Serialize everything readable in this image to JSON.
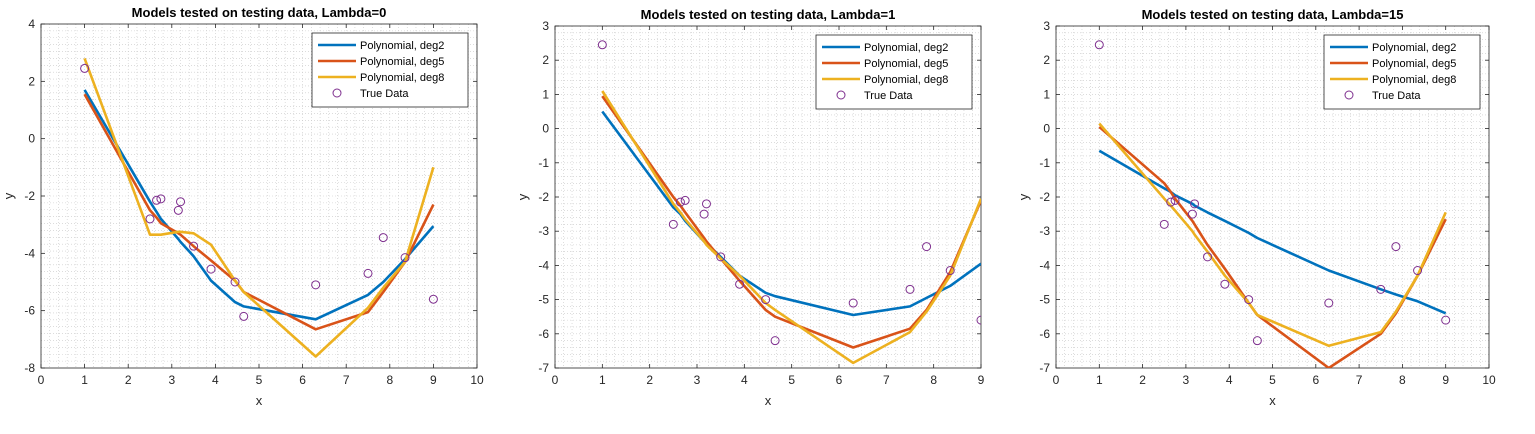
{
  "chart_data": [
    {
      "type": "line",
      "title": "Models tested on testing data, Lambda=0",
      "xlabel": "x",
      "ylabel": "y",
      "xlim": [
        0,
        10
      ],
      "ylim": [
        -8,
        4
      ],
      "xticks": [
        0,
        1,
        2,
        3,
        4,
        5,
        6,
        7,
        8,
        9,
        10
      ],
      "yticks": [
        -8,
        -6,
        -4,
        -2,
        0,
        2,
        4
      ],
      "grid": "minor-dotted",
      "legend_position": "top-right",
      "series": [
        {
          "name": "Polynomial, deg2",
          "style": "line",
          "color": "#0072BD",
          "x": [
            1,
            2.5,
            2.65,
            2.75,
            3.15,
            3.2,
            3.5,
            3.9,
            4.45,
            4.65,
            6.3,
            7.5,
            7.85,
            8.35,
            9
          ],
          "y": [
            1.7,
            -2.2,
            -2.55,
            -2.8,
            -3.5,
            -3.6,
            -4.1,
            -4.95,
            -5.7,
            -5.85,
            -6.3,
            -5.45,
            -5.0,
            -4.2,
            -3.05
          ]
        },
        {
          "name": "Polynomial, deg5",
          "style": "line",
          "color": "#D95319",
          "x": [
            1,
            2.5,
            2.65,
            2.75,
            3.15,
            3.2,
            3.5,
            3.9,
            4.45,
            4.65,
            6.3,
            7.5,
            7.85,
            8.35,
            9
          ],
          "y": [
            1.55,
            -2.5,
            -2.75,
            -2.95,
            -3.3,
            -3.35,
            -3.75,
            -4.25,
            -4.95,
            -5.35,
            -6.65,
            -6.05,
            -5.35,
            -4.3,
            -2.3
          ]
        },
        {
          "name": "Polynomial, deg8",
          "style": "line",
          "color": "#EDB120",
          "x": [
            1,
            2.5,
            2.65,
            2.75,
            3.15,
            3.2,
            3.5,
            3.9,
            4.45,
            4.65,
            6.3,
            7.5,
            7.85,
            8.35,
            9
          ],
          "y": [
            2.8,
            -3.35,
            -3.35,
            -3.35,
            -3.25,
            -3.25,
            -3.3,
            -3.7,
            -4.95,
            -5.35,
            -7.6,
            -5.9,
            -5.2,
            -4.3,
            -1.0
          ]
        },
        {
          "name": "True Data",
          "style": "marker",
          "color": "#7E2F8E",
          "x": [
            1,
            2.5,
            2.65,
            2.75,
            3.15,
            3.2,
            3.5,
            3.9,
            4.45,
            4.65,
            6.3,
            7.5,
            7.85,
            8.35,
            9
          ],
          "y": [
            2.45,
            -2.8,
            -2.15,
            -2.1,
            -2.5,
            -2.2,
            -3.75,
            -4.55,
            -5.0,
            -6.2,
            -5.1,
            -4.7,
            -3.45,
            -4.15,
            -5.6
          ]
        }
      ]
    },
    {
      "type": "line",
      "title": "Models tested on testing data, Lambda=1",
      "xlabel": "x",
      "ylabel": "y",
      "xlim": [
        0,
        9
      ],
      "ylim": [
        -7,
        3
      ],
      "xticks": [
        0,
        1,
        2,
        3,
        4,
        5,
        6,
        7,
        8,
        9
      ],
      "yticks": [
        -7,
        -6,
        -5,
        -4,
        -3,
        -2,
        -1,
        0,
        1,
        2,
        3
      ],
      "grid": "minor-dotted",
      "legend_position": "top-right",
      "series": [
        {
          "name": "Polynomial, deg2",
          "style": "line",
          "color": "#0072BD",
          "x": [
            1,
            2.5,
            2.65,
            2.75,
            3.15,
            3.2,
            3.5,
            3.9,
            4.45,
            4.65,
            6.3,
            7.5,
            7.85,
            8.35,
            9
          ],
          "y": [
            0.5,
            -2.3,
            -2.5,
            -2.7,
            -3.3,
            -3.35,
            -3.75,
            -4.3,
            -4.8,
            -4.9,
            -5.45,
            -5.2,
            -4.95,
            -4.6,
            -3.95
          ]
        },
        {
          "name": "Polynomial, deg5",
          "style": "line",
          "color": "#D95319",
          "x": [
            1,
            2.5,
            2.65,
            2.75,
            3.15,
            3.2,
            3.5,
            3.9,
            4.45,
            4.65,
            6.3,
            7.5,
            7.85,
            8.35,
            9
          ],
          "y": [
            0.95,
            -2.0,
            -2.25,
            -2.45,
            -3.2,
            -3.3,
            -3.8,
            -4.45,
            -5.3,
            -5.5,
            -6.4,
            -5.85,
            -5.3,
            -4.2,
            -2.1
          ]
        },
        {
          "name": "Polynomial, deg8",
          "style": "line",
          "color": "#EDB120",
          "x": [
            1,
            2.5,
            2.65,
            2.75,
            3.15,
            3.2,
            3.5,
            3.9,
            4.45,
            4.65,
            6.3,
            7.5,
            7.85,
            8.35,
            9
          ],
          "y": [
            1.1,
            -2.2,
            -2.45,
            -2.65,
            -3.3,
            -3.4,
            -3.8,
            -4.3,
            -5.1,
            -5.3,
            -6.85,
            -5.95,
            -5.35,
            -4.3,
            -2.05
          ]
        },
        {
          "name": "True Data",
          "style": "marker",
          "color": "#7E2F8E",
          "x": [
            1,
            2.5,
            2.65,
            2.75,
            3.15,
            3.2,
            3.5,
            3.9,
            4.45,
            4.65,
            6.3,
            7.5,
            7.85,
            8.35,
            9
          ],
          "y": [
            2.45,
            -2.8,
            -2.15,
            -2.1,
            -2.5,
            -2.2,
            -3.75,
            -4.55,
            -5.0,
            -6.2,
            -5.1,
            -4.7,
            -3.45,
            -4.15,
            -5.6
          ]
        }
      ]
    },
    {
      "type": "line",
      "title": "Models tested on testing data, Lambda=15",
      "xlabel": "x",
      "ylabel": "y",
      "xlim": [
        0,
        10
      ],
      "ylim": [
        -7,
        3
      ],
      "xticks": [
        0,
        1,
        2,
        3,
        4,
        5,
        6,
        7,
        8,
        9,
        10
      ],
      "yticks": [
        -7,
        -6,
        -5,
        -4,
        -3,
        -2,
        -1,
        0,
        1,
        2,
        3
      ],
      "grid": "minor-dotted",
      "legend_position": "top-right",
      "series": [
        {
          "name": "Polynomial, deg2",
          "style": "line",
          "color": "#0072BD",
          "x": [
            1,
            2.5,
            2.65,
            2.75,
            3.15,
            3.2,
            3.5,
            3.9,
            4.45,
            4.65,
            6.3,
            7.5,
            7.85,
            8.35,
            9
          ],
          "y": [
            -0.65,
            -1.75,
            -1.85,
            -1.95,
            -2.2,
            -2.25,
            -2.45,
            -2.7,
            -3.05,
            -3.2,
            -4.15,
            -4.7,
            -4.85,
            -5.05,
            -5.4
          ]
        },
        {
          "name": "Polynomial, deg5",
          "style": "line",
          "color": "#D95319",
          "x": [
            1,
            2.5,
            2.65,
            2.75,
            3.15,
            3.2,
            3.5,
            3.9,
            4.45,
            4.65,
            6.3,
            7.5,
            7.85,
            8.35,
            9
          ],
          "y": [
            0.05,
            -1.6,
            -1.85,
            -2.05,
            -2.7,
            -2.8,
            -3.4,
            -4.1,
            -5.1,
            -5.45,
            -7.0,
            -6.0,
            -5.4,
            -4.3,
            -2.65
          ]
        },
        {
          "name": "Polynomial, deg8",
          "style": "line",
          "color": "#EDB120",
          "x": [
            1,
            2.5,
            2.65,
            2.75,
            3.15,
            3.2,
            3.5,
            3.9,
            4.45,
            4.65,
            6.3,
            7.5,
            7.85,
            8.35,
            9
          ],
          "y": [
            0.15,
            -2.05,
            -2.25,
            -2.4,
            -3.0,
            -3.1,
            -3.6,
            -4.3,
            -5.1,
            -5.45,
            -6.35,
            -5.95,
            -5.35,
            -4.3,
            -2.45
          ]
        },
        {
          "name": "True Data",
          "style": "marker",
          "color": "#7E2F8E",
          "x": [
            1,
            2.5,
            2.65,
            2.75,
            3.15,
            3.2,
            3.5,
            3.9,
            4.45,
            4.65,
            6.3,
            7.5,
            7.85,
            8.35,
            9
          ],
          "y": [
            2.45,
            -2.8,
            -2.15,
            -2.1,
            -2.5,
            -2.2,
            -3.75,
            -4.55,
            -5.0,
            -6.2,
            -5.1,
            -4.7,
            -3.45,
            -4.15,
            -5.6
          ]
        }
      ]
    }
  ]
}
